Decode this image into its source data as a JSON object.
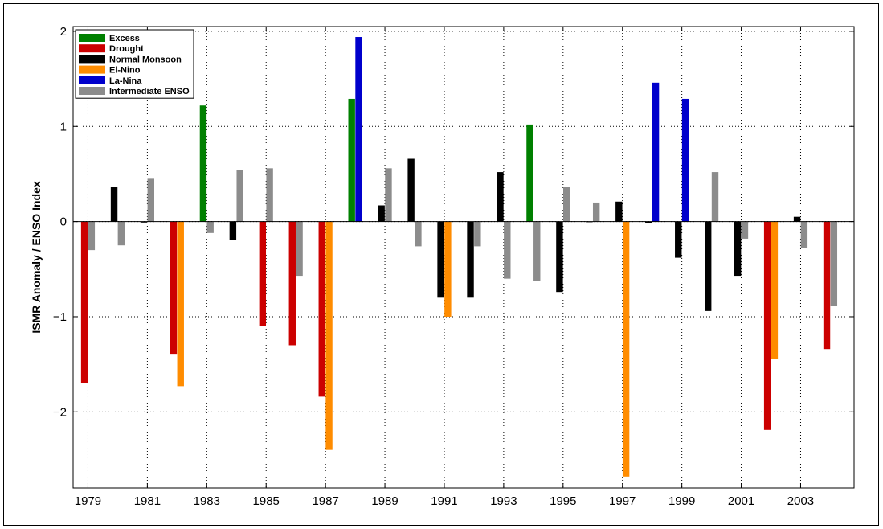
{
  "chart_data": {
    "type": "bar",
    "title": "",
    "xlabel": "",
    "ylabel": "ISMR Anomaly / ENSO Index",
    "xlim": [
      1978.5,
      2004.8
    ],
    "ylim": [
      -2.8,
      2.05
    ],
    "x_ticks": [
      1979,
      1981,
      1983,
      1985,
      1987,
      1989,
      1991,
      1993,
      1995,
      1997,
      1999,
      2001,
      2003
    ],
    "x_tick_labels": [
      "1979",
      "1981",
      "1983",
      "1985",
      "1987",
      "1989",
      "1991",
      "1993",
      "1995",
      "1997",
      "1999",
      "2001",
      "2003"
    ],
    "y_ticks": [
      -2,
      -1,
      0,
      1,
      2
    ],
    "y_tick_labels": [
      "−2",
      "−1",
      "0",
      "1",
      "2"
    ],
    "grid": true,
    "legend_position": "top-left",
    "legend": [
      {
        "key": "excess",
        "label": "Excess",
        "color": "#008000"
      },
      {
        "key": "drought",
        "label": "Drought",
        "color": "#cc0000"
      },
      {
        "key": "normal",
        "label": "Normal Monsoon",
        "color": "#000000"
      },
      {
        "key": "elnino",
        "label": "El-Nino",
        "color": "#ff8c00"
      },
      {
        "key": "lanina",
        "label": "La-Nina",
        "color": "#0000cc"
      },
      {
        "key": "intermediate",
        "label": "Intermediate ENSO",
        "color": "#8c8c8c"
      }
    ],
    "years": [
      1979,
      1980,
      1981,
      1982,
      1983,
      1984,
      1985,
      1986,
      1987,
      1988,
      1989,
      1990,
      1991,
      1992,
      1993,
      1994,
      1995,
      1996,
      1997,
      1998,
      1999,
      2000,
      2001,
      2002,
      2003,
      2004
    ],
    "ismr": [
      {
        "value": -1.7,
        "category": "drought"
      },
      {
        "value": 0.36,
        "category": "normal"
      },
      {
        "value": -0.01,
        "category": "normal"
      },
      {
        "value": -1.39,
        "category": "drought"
      },
      {
        "value": 1.22,
        "category": "excess"
      },
      {
        "value": -0.19,
        "category": "normal"
      },
      {
        "value": -1.1,
        "category": "drought"
      },
      {
        "value": -1.3,
        "category": "drought"
      },
      {
        "value": -1.84,
        "category": "drought"
      },
      {
        "value": 1.29,
        "category": "excess"
      },
      {
        "value": 0.17,
        "category": "normal"
      },
      {
        "value": 0.66,
        "category": "normal"
      },
      {
        "value": -0.8,
        "category": "normal"
      },
      {
        "value": -0.8,
        "category": "normal"
      },
      {
        "value": 0.52,
        "category": "normal"
      },
      {
        "value": 1.02,
        "category": "excess"
      },
      {
        "value": -0.74,
        "category": "normal"
      },
      {
        "value": 0.0,
        "category": "normal"
      },
      {
        "value": 0.21,
        "category": "normal"
      },
      {
        "value": -0.02,
        "category": "normal"
      },
      {
        "value": -0.38,
        "category": "normal"
      },
      {
        "value": -0.94,
        "category": "normal"
      },
      {
        "value": -0.57,
        "category": "normal"
      },
      {
        "value": -2.19,
        "category": "drought"
      },
      {
        "value": 0.05,
        "category": "normal"
      },
      {
        "value": -1.34,
        "category": "drought"
      }
    ],
    "enso": [
      {
        "value": -0.3,
        "category": "intermediate"
      },
      {
        "value": -0.25,
        "category": "intermediate"
      },
      {
        "value": 0.45,
        "category": "intermediate"
      },
      {
        "value": -1.73,
        "category": "elnino"
      },
      {
        "value": -0.12,
        "category": "intermediate"
      },
      {
        "value": 0.54,
        "category": "intermediate"
      },
      {
        "value": 0.56,
        "category": "intermediate"
      },
      {
        "value": -0.57,
        "category": "intermediate"
      },
      {
        "value": -2.4,
        "category": "elnino"
      },
      {
        "value": 1.94,
        "category": "lanina"
      },
      {
        "value": 0.56,
        "category": "intermediate"
      },
      {
        "value": -0.26,
        "category": "intermediate"
      },
      {
        "value": -1.0,
        "category": "elnino"
      },
      {
        "value": -0.26,
        "category": "intermediate"
      },
      {
        "value": -0.6,
        "category": "intermediate"
      },
      {
        "value": -0.62,
        "category": "intermediate"
      },
      {
        "value": 0.36,
        "category": "intermediate"
      },
      {
        "value": 0.2,
        "category": "intermediate"
      },
      {
        "value": -2.68,
        "category": "elnino"
      },
      {
        "value": 1.46,
        "category": "lanina"
      },
      {
        "value": 1.29,
        "category": "lanina"
      },
      {
        "value": 0.52,
        "category": "intermediate"
      },
      {
        "value": -0.18,
        "category": "intermediate"
      },
      {
        "value": -1.44,
        "category": "elnino"
      },
      {
        "value": -0.28,
        "category": "intermediate"
      },
      {
        "value": -0.89,
        "category": "intermediate"
      }
    ]
  }
}
